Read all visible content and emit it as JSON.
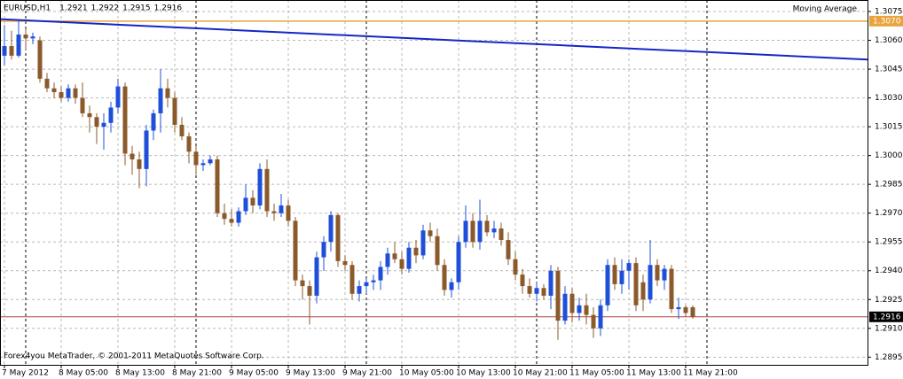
{
  "chart_data": {
    "type": "candlestick",
    "title": "EURUSD,H1",
    "last_ohlc": [
      1.2921,
      1.2922,
      1.2915,
      1.2916
    ],
    "footer": "Forex4you MetaTrader, © 2001-2011 MetaQuotes Software Corp.",
    "up_color": "#1f4fd8",
    "down_color": "#8b5a2b",
    "open": [
      1.3052,
      1.3057,
      1.3052,
      1.3063,
      1.3061,
      1.306,
      1.304,
      1.3035,
      1.3033,
      1.303,
      1.3035,
      1.303,
      1.3022,
      1.302,
      1.3015,
      1.3017,
      1.3025,
      1.3036,
      1.3001,
      1.2998,
      1.2993,
      1.3013,
      1.3022,
      1.3035,
      1.303,
      1.3016,
      1.301,
      1.3002,
      1.2995,
      1.2996,
      1.2998,
      1.297,
      1.2967,
      1.2965,
      1.2971,
      1.2978,
      1.2974,
      1.2993,
      1.2971,
      1.297,
      1.2974,
      1.2966,
      1.2935,
      1.2932,
      1.2927,
      1.2947,
      1.2955,
      1.2969,
      1.2945,
      1.2943,
      1.2928,
      1.2932,
      1.2934,
      1.2935,
      1.2942,
      1.2949,
      1.2946,
      1.2941,
      1.2952,
      1.2948,
      1.2961,
      1.2958,
      1.2943,
      1.293,
      1.2934,
      1.2955,
      1.2966,
      1.2955,
      1.2966,
      1.296,
      1.2962,
      1.2956,
      1.2946,
      1.2938,
      1.2932,
      1.2928,
      1.2931,
      1.2927,
      1.294,
      1.2914,
      1.2928,
      1.2918,
      1.2922,
      1.2917,
      1.291,
      1.2922,
      1.2943,
      1.2933,
      1.294,
      1.2944,
      1.2934,
      1.2925,
      1.2943,
      1.2935,
      1.2941,
      1.292,
      1.2921,
      1.2921
    ],
    "high": [
      1.3068,
      1.3065,
      1.307,
      1.3066,
      1.3064,
      1.3062,
      1.3043,
      1.3038,
      1.3036,
      1.3037,
      1.3037,
      1.3038,
      1.3026,
      1.3022,
      1.3022,
      1.3028,
      1.304,
      1.3038,
      1.3005,
      1.3002,
      1.3016,
      1.3024,
      1.3045,
      1.304,
      1.3033,
      1.302,
      1.3012,
      1.3005,
      1.2998,
      1.3,
      1.3,
      1.2975,
      1.2972,
      1.2973,
      1.2985,
      1.2982,
      1.2996,
      1.2998,
      1.2975,
      1.298,
      1.2977,
      1.2968,
      1.2938,
      1.2935,
      1.295,
      1.2958,
      1.2971,
      1.297,
      1.2948,
      1.2945,
      1.2935,
      1.2936,
      1.2938,
      1.2945,
      1.2952,
      1.2955,
      1.295,
      1.2955,
      1.2956,
      1.2964,
      1.2965,
      1.2962,
      1.2946,
      1.2936,
      1.2958,
      1.2974,
      1.297,
      1.2977,
      1.2969,
      1.2966,
      1.2965,
      1.296,
      1.295,
      1.2941,
      1.2936,
      1.2934,
      1.2933,
      1.2943,
      1.2942,
      1.2932,
      1.2931,
      1.2926,
      1.2928,
      1.2921,
      1.2925,
      1.2946,
      1.2947,
      1.2946,
      1.2946,
      1.2947,
      1.2938,
      1.2956,
      1.2946,
      1.2943,
      1.2943,
      1.2926,
      1.2922,
      1.2922
    ],
    "low": [
      1.3047,
      1.305,
      1.3051,
      1.3055,
      1.3058,
      1.3038,
      1.3033,
      1.303,
      1.3028,
      1.3028,
      1.3027,
      1.302,
      1.3012,
      1.3006,
      1.3003,
      1.3012,
      1.3022,
      1.2995,
      1.299,
      1.2983,
      1.2984,
      1.3008,
      1.3012,
      1.3025,
      1.3012,
      1.3008,
      1.2996,
      1.299,
      1.2992,
      1.2995,
      1.2968,
      1.2964,
      1.2963,
      1.2963,
      1.2969,
      1.297,
      1.2972,
      1.2968,
      1.2966,
      1.2968,
      1.2963,
      1.2932,
      1.2925,
      1.2912,
      1.2923,
      1.294,
      1.295,
      1.2942,
      1.294,
      1.2925,
      1.2924,
      1.2928,
      1.293,
      1.293,
      1.2938,
      1.2944,
      1.2938,
      1.2939,
      1.2944,
      1.2946,
      1.2955,
      1.294,
      1.2927,
      1.2926,
      1.293,
      1.2952,
      1.2952,
      1.2951,
      1.2958,
      1.2957,
      1.2953,
      1.2943,
      1.2935,
      1.2928,
      1.2926,
      1.2924,
      1.2925,
      1.292,
      1.2904,
      1.2912,
      1.2913,
      1.2914,
      1.2912,
      1.2905,
      1.2906,
      1.2919,
      1.293,
      1.2928,
      1.293,
      1.2919,
      1.2919,
      1.2923,
      1.2932,
      1.293,
      1.2918,
      1.2915,
      1.2916,
      1.2915
    ],
    "close": [
      1.3057,
      1.3052,
      1.3063,
      1.3061,
      1.3062,
      1.304,
      1.3035,
      1.3033,
      1.303,
      1.3035,
      1.303,
      1.3022,
      1.302,
      1.3015,
      1.3017,
      1.3025,
      1.3036,
      1.3001,
      1.2998,
      1.2993,
      1.3013,
      1.3022,
      1.3035,
      1.303,
      1.3016,
      1.301,
      1.3002,
      1.2995,
      1.2996,
      1.2998,
      1.297,
      1.2967,
      1.2965,
      1.2971,
      1.2978,
      1.2974,
      1.2993,
      1.2971,
      1.297,
      1.2974,
      1.2966,
      1.2935,
      1.2932,
      1.2927,
      1.2947,
      1.2955,
      1.2969,
      1.2945,
      1.2943,
      1.2928,
      1.2932,
      1.2934,
      1.2935,
      1.2942,
      1.2949,
      1.2946,
      1.2941,
      1.2952,
      1.2948,
      1.2961,
      1.2958,
      1.2943,
      1.293,
      1.2934,
      1.2955,
      1.2966,
      1.2955,
      1.2966,
      1.296,
      1.2962,
      1.2956,
      1.2946,
      1.2938,
      1.2932,
      1.2928,
      1.2931,
      1.2927,
      1.294,
      1.2914,
      1.2928,
      1.2918,
      1.2922,
      1.2917,
      1.291,
      1.2922,
      1.2943,
      1.2933,
      1.294,
      1.2944,
      1.2922,
      1.2925,
      1.2943,
      1.2935,
      1.2941,
      1.292,
      1.2921,
      1.2918,
      1.2916
    ],
    "moving_average": {
      "name": "Moving Average",
      "color": "#1426c8",
      "x": [
        -0.625,
        121.625
      ],
      "values": [
        1.3071,
        1.305
      ]
    },
    "level_line": {
      "value": 1.307,
      "label": "1.3070",
      "color": "#e8a33d"
    },
    "bid_line": {
      "value": 1.2916,
      "label": "1.2916",
      "color": "#b04040"
    },
    "separators": [
      3,
      27,
      51,
      75,
      99
    ],
    "xlim": [
      -0.625,
      121.625
    ],
    "ylim": [
      1.2891,
      1.3081
    ],
    "xticks": [
      {
        "value": 0,
        "label": "7 May 2012"
      },
      {
        "value": 8,
        "label": "8 May 05:00"
      },
      {
        "value": 16,
        "label": "8 May 13:00"
      },
      {
        "value": 24,
        "label": "8 May 21:00"
      },
      {
        "value": 32,
        "label": "9 May 05:00"
      },
      {
        "value": 40,
        "label": "9 May 13:00"
      },
      {
        "value": 48,
        "label": "9 May 21:00"
      },
      {
        "value": 56,
        "label": "10 May 05:00"
      },
      {
        "value": 64,
        "label": "10 May 13:00"
      },
      {
        "value": 72,
        "label": "10 May 21:00"
      },
      {
        "value": 80,
        "label": "11 May 05:00"
      },
      {
        "value": 88,
        "label": "11 May 13:00"
      },
      {
        "value": 96,
        "label": "11 May 21:00"
      }
    ],
    "yticks": [
      {
        "value": 1.3075,
        "label": "1.3075"
      },
      {
        "value": 1.306,
        "label": "1.3060"
      },
      {
        "value": 1.3045,
        "label": "1.3045"
      },
      {
        "value": 1.303,
        "label": "1.3030"
      },
      {
        "value": 1.3015,
        "label": "1.3015"
      },
      {
        "value": 1.3,
        "label": "1.3000"
      },
      {
        "value": 1.2985,
        "label": "1.2985"
      },
      {
        "value": 1.297,
        "label": "1.2970"
      },
      {
        "value": 1.2955,
        "label": "1.2955"
      },
      {
        "value": 1.294,
        "label": "1.2940"
      },
      {
        "value": 1.2925,
        "label": "1.2925"
      },
      {
        "value": 1.291,
        "label": "1.2910"
      },
      {
        "value": 1.2895,
        "label": "1.2895"
      }
    ],
    "grid": true
  }
}
